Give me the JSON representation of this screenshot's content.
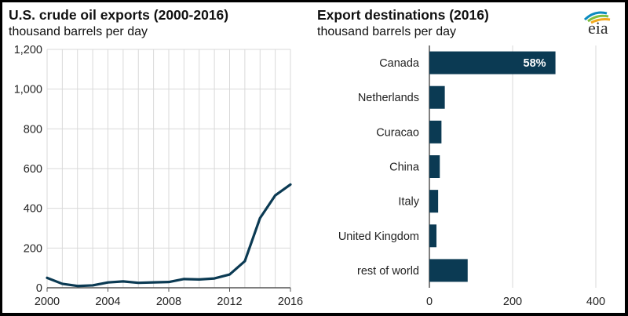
{
  "logo": "eia",
  "colors": {
    "series": "#0b3a53",
    "grid": "#d9d9d9",
    "axis": "#555555"
  },
  "chart_data": [
    {
      "type": "line",
      "title": "U.S. crude oil exports (2000-2016)",
      "subtitle": "thousand barrels per day",
      "x": [
        2000,
        2001,
        2002,
        2003,
        2004,
        2005,
        2006,
        2007,
        2008,
        2009,
        2010,
        2011,
        2012,
        2013,
        2014,
        2015,
        2016
      ],
      "series": [
        {
          "values": [
            50,
            20,
            9,
            12,
            27,
            32,
            25,
            27,
            29,
            44,
            42,
            47,
            67,
            134,
            351,
            465,
            520
          ]
        }
      ],
      "xticks": [
        2000,
        2004,
        2008,
        2012,
        2016
      ],
      "xtick_labels": [
        "2000",
        "2004",
        "2008",
        "2012",
        "2016"
      ],
      "yticks": [
        0,
        200,
        400,
        600,
        800,
        1000,
        1200
      ],
      "ytick_labels": [
        "0",
        "200",
        "400",
        "600",
        "800",
        "1,000",
        "1,200"
      ],
      "xlim": [
        2000,
        2016
      ],
      "ylim": [
        0,
        1200
      ],
      "grid": true
    },
    {
      "type": "bar",
      "orientation": "horizontal",
      "title": "Export destinations (2016)",
      "subtitle": "thousand barrels per day",
      "categories": [
        "Canada",
        "Netherlands",
        "Curacao",
        "China",
        "Italy",
        "United Kingdom",
        "rest of world"
      ],
      "values": [
        303,
        37,
        29,
        25,
        21,
        17,
        92
      ],
      "data_labels": [
        "58%",
        "",
        "",
        "",
        "",
        "",
        ""
      ],
      "xticks": [
        0,
        200,
        400
      ],
      "xtick_labels": [
        "0",
        "200",
        "400"
      ],
      "xlim": [
        0,
        400
      ],
      "grid": true
    }
  ]
}
